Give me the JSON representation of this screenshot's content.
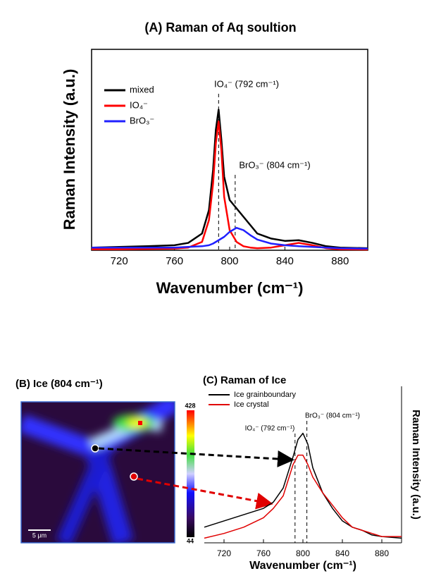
{
  "chart_data": [
    {
      "type": "line",
      "title": "(A) Raman of Aq soultion",
      "x_label": "Wavenumber (cm⁻¹)",
      "y_label": "Raman Intensity (a.u.)",
      "x": [
        700,
        720,
        740,
        760,
        770,
        780,
        785,
        788,
        790,
        792,
        794,
        796,
        800,
        805,
        810,
        815,
        820,
        830,
        840,
        850,
        860,
        870,
        880,
        900
      ],
      "series": [
        {
          "name": "mixed",
          "color": "#000000",
          "values": [
            0.08,
            0.1,
            0.12,
            0.15,
            0.22,
            0.5,
            1.2,
            2.4,
            3.6,
            4.2,
            3.3,
            2.2,
            1.5,
            1.25,
            1.0,
            0.75,
            0.5,
            0.35,
            0.28,
            0.3,
            0.22,
            0.12,
            0.08,
            0.06
          ]
        },
        {
          "name": "IO₄⁻",
          "color": "#ff0000",
          "values": [
            0.03,
            0.03,
            0.04,
            0.05,
            0.08,
            0.25,
            0.9,
            2.0,
            3.2,
            3.85,
            3.0,
            1.6,
            0.6,
            0.25,
            0.12,
            0.08,
            0.06,
            0.08,
            0.15,
            0.22,
            0.15,
            0.06,
            0.03,
            0.02
          ]
        },
        {
          "name": "BrO₃⁻",
          "color": "#2020ff",
          "values": [
            0.08,
            0.08,
            0.08,
            0.08,
            0.1,
            0.12,
            0.15,
            0.2,
            0.25,
            0.3,
            0.35,
            0.4,
            0.55,
            0.67,
            0.6,
            0.45,
            0.32,
            0.2,
            0.15,
            0.12,
            0.1,
            0.08,
            0.06,
            0.05
          ]
        }
      ],
      "annotations": [
        {
          "text": "IO₄⁻ (792 cm⁻¹)",
          "x": 792
        },
        {
          "text": "BrO₃⁻ (804 cm⁻¹)",
          "x": 804
        }
      ],
      "xlim": [
        700,
        900
      ],
      "xticks": [
        720,
        760,
        800,
        840,
        880
      ],
      "ylim": [
        0,
        6
      ]
    },
    {
      "type": "line",
      "title": "(C) Raman of Ice",
      "x_label": "Wavenumber (cm⁻¹)",
      "y_label": "Raman Intensity (a.u.)",
      "x": [
        700,
        720,
        740,
        760,
        770,
        780,
        790,
        795,
        800,
        805,
        810,
        820,
        830,
        840,
        850,
        860,
        870,
        880,
        900
      ],
      "series": [
        {
          "name": "Ice grainboundary",
          "color": "#000000",
          "values": [
            1.0,
            1.4,
            1.8,
            2.2,
            2.6,
            3.5,
            5.5,
            6.6,
            7.0,
            6.3,
            4.8,
            3.2,
            2.2,
            1.4,
            1.0,
            0.8,
            0.5,
            0.4,
            0.3
          ]
        },
        {
          "name": "Ice crystal",
          "color": "#e00000",
          "values": [
            0.3,
            0.6,
            1.0,
            1.6,
            2.2,
            3.0,
            5.0,
            5.6,
            5.6,
            5.0,
            4.2,
            3.2,
            2.4,
            1.6,
            1.0,
            0.8,
            0.6,
            0.4,
            0.4
          ]
        }
      ],
      "annotations": [
        {
          "text": "IO₄⁻ (792 cm⁻¹)",
          "x": 792
        },
        {
          "text": "BrO₃⁻ (804 cm⁻¹)",
          "x": 804
        }
      ],
      "xlim": [
        700,
        900
      ],
      "xticks": [
        720,
        760,
        800,
        840,
        880
      ],
      "ylim": [
        0,
        10
      ]
    }
  ],
  "heatmap_panel": {
    "title": "(B) Ice (804 cm⁻¹)",
    "colorbar_max": 428,
    "colorbar_min": 44,
    "scale_bar": "5 μm"
  }
}
